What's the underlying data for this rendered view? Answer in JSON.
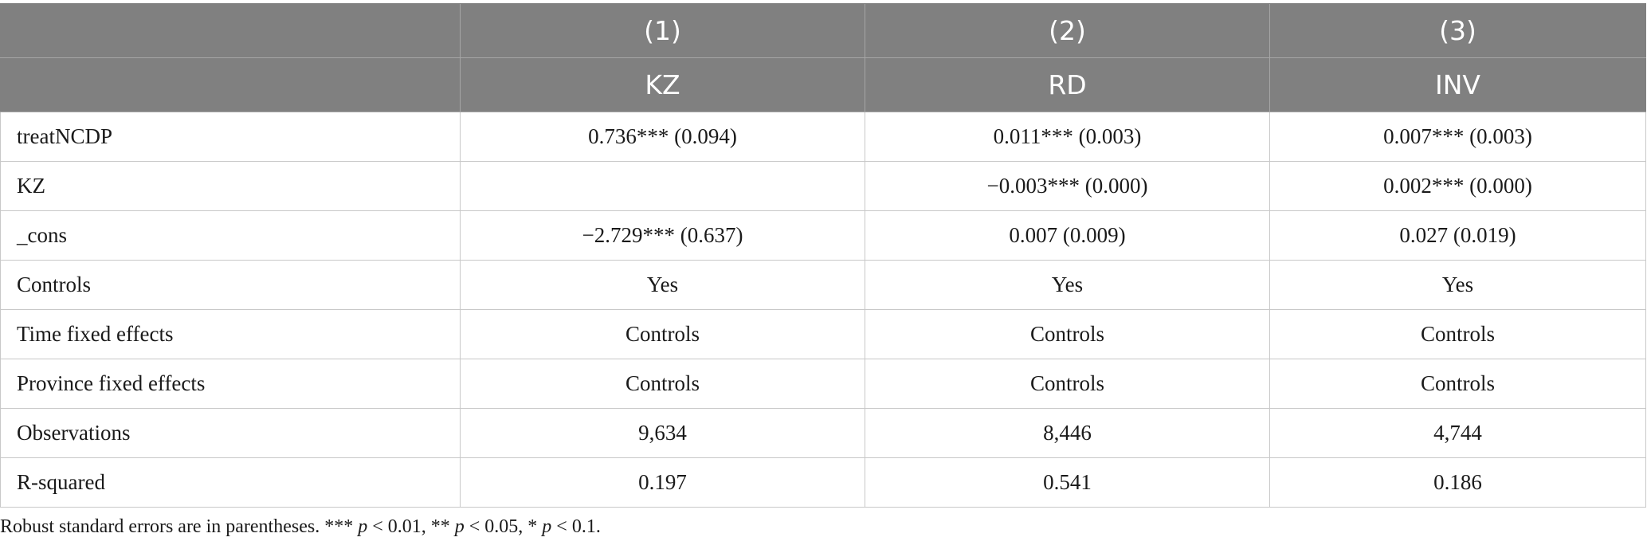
{
  "header": {
    "row1": [
      "",
      "(1)",
      "(2)",
      "(3)"
    ],
    "row2": [
      "",
      "KZ",
      "RD",
      "INV"
    ]
  },
  "rows": [
    {
      "label": "treatNCDP",
      "values": [
        "0.736*** (0.094)",
        "0.011*** (0.003)",
        "0.007*** (0.003)"
      ]
    },
    {
      "label": "KZ",
      "values": [
        "",
        "−0.003*** (0.000)",
        "0.002*** (0.000)"
      ]
    },
    {
      "label": "_cons",
      "values": [
        "−2.729*** (0.637)",
        "0.007 (0.009)",
        "0.027 (0.019)"
      ]
    },
    {
      "label": "Controls",
      "values": [
        "Yes",
        "Yes",
        "Yes"
      ]
    },
    {
      "label": "Time fixed effects",
      "values": [
        "Controls",
        "Controls",
        "Controls"
      ]
    },
    {
      "label": "Province fixed effects",
      "values": [
        "Controls",
        "Controls",
        "Controls"
      ]
    },
    {
      "label": "Observations",
      "values": [
        "9,634",
        "8,446",
        "4,744"
      ]
    },
    {
      "label": "R-squared",
      "values": [
        "0.197",
        "0.541",
        "0.186"
      ]
    }
  ],
  "note": {
    "prefix": "Robust standard errors are in parentheses. *** ",
    "p1": "p",
    "t1": " < 0.01, ** ",
    "p2": "p",
    "t2": " < 0.05, * ",
    "p3": "p",
    "t3": " < 0.1."
  }
}
